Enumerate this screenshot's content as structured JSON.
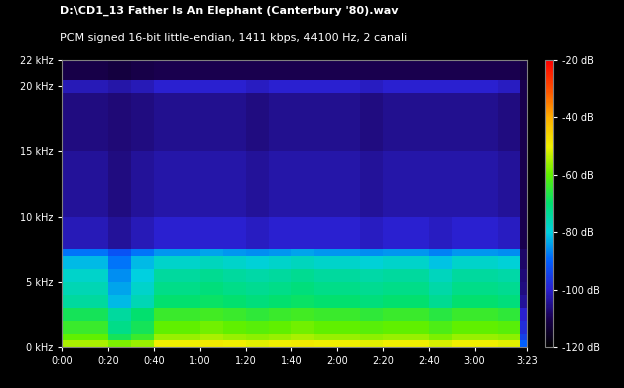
{
  "chart_data": {
    "type": "heatmap",
    "title": "D:\\CD1_13 Father Is An Elephant (Canterbury '80).wav",
    "subtitle": "PCM signed 16-bit little-endian, 1411 kbps, 44100 Hz, 2 canali",
    "x_edges": [
      0,
      10,
      20,
      30,
      40,
      50,
      60,
      70,
      80,
      90,
      100,
      110,
      120,
      130,
      140,
      150,
      160,
      170,
      180,
      190,
      200,
      203
    ],
    "y_edges": [
      0,
      0.5,
      1,
      2,
      3,
      4,
      5,
      6,
      7,
      7.5,
      10,
      15,
      19.5,
      20.5,
      22
    ],
    "cells": [
      [
        -55,
        -55,
        -58,
        -56,
        -50,
        -50,
        -49,
        -50,
        -51,
        -50,
        -49,
        -50,
        -50,
        -51,
        -50,
        -50,
        -52,
        -50,
        -50,
        -51,
        -90
      ],
      [
        -60,
        -60,
        -68,
        -64,
        -56,
        -56,
        -55,
        -56,
        -57,
        -56,
        -55,
        -56,
        -56,
        -57,
        -56,
        -56,
        -58,
        -56,
        -56,
        -57,
        -95
      ],
      [
        -64,
        -64,
        -72,
        -68,
        -60,
        -60,
        -59,
        -60,
        -61,
        -60,
        -59,
        -60,
        -60,
        -61,
        -60,
        -60,
        -62,
        -60,
        -60,
        -61,
        -98
      ],
      [
        -68,
        -68,
        -74,
        -70,
        -64,
        -64,
        -63,
        -64,
        -65,
        -64,
        -63,
        -64,
        -64,
        -65,
        -64,
        -64,
        -66,
        -64,
        -64,
        -65,
        -100
      ],
      [
        -74,
        -74,
        -82,
        -76,
        -70,
        -70,
        -69,
        -70,
        -71,
        -70,
        -69,
        -70,
        -70,
        -71,
        -70,
        -70,
        -73,
        -70,
        -70,
        -71,
        -104
      ],
      [
        -76,
        -76,
        -84,
        -78,
        -72,
        -72,
        -71,
        -72,
        -73,
        -72,
        -71,
        -72,
        -72,
        -73,
        -72,
        -72,
        -75,
        -72,
        -72,
        -73,
        -106
      ],
      [
        -78,
        -78,
        -86,
        -80,
        -74,
        -74,
        -73,
        -74,
        -75,
        -74,
        -73,
        -74,
        -74,
        -75,
        -74,
        -74,
        -77,
        -74,
        -74,
        -75,
        -107
      ],
      [
        -82,
        -82,
        -88,
        -82,
        -78,
        -78,
        -77,
        -78,
        -79,
        -78,
        -77,
        -78,
        -78,
        -79,
        -78,
        -78,
        -81,
        -78,
        -78,
        -79,
        -108
      ],
      [
        -88,
        -88,
        -92,
        -88,
        -85,
        -85,
        -84,
        -85,
        -86,
        -85,
        -84,
        -85,
        -85,
        -86,
        -85,
        -85,
        -87,
        -85,
        -85,
        -86,
        -108
      ],
      [
        -102,
        -102,
        -104,
        -102,
        -100,
        -100,
        -100,
        -100,
        -101,
        -100,
        -100,
        -100,
        -100,
        -101,
        -100,
        -100,
        -101,
        -100,
        -100,
        -101,
        -110
      ],
      [
        -104,
        -104,
        -106,
        -104,
        -103,
        -103,
        -103,
        -103,
        -104,
        -103,
        -103,
        -103,
        -103,
        -104,
        -103,
        -103,
        -103,
        -103,
        -103,
        -104,
        -110
      ],
      [
        -106,
        -106,
        -107,
        -106,
        -105,
        -105,
        -105,
        -105,
        -106,
        -105,
        -105,
        -105,
        -105,
        -106,
        -105,
        -105,
        -105,
        -105,
        -105,
        -106,
        -110
      ],
      [
        -102,
        -102,
        -103,
        -102,
        -100,
        -100,
        -100,
        -100,
        -101,
        -100,
        -100,
        -100,
        -100,
        -101,
        -100,
        -100,
        -100,
        -100,
        -100,
        -101,
        -110
      ],
      [
        -111,
        -111,
        -112,
        -111,
        -110,
        -110,
        -110,
        -110,
        -110,
        -110,
        -110,
        -110,
        -110,
        -110,
        -110,
        -110,
        -110,
        -110,
        -110,
        -110,
        -112
      ]
    ],
    "xlim": [
      0,
      203
    ],
    "xticks": [
      {
        "value": 0,
        "label": "0:00"
      },
      {
        "value": 20,
        "label": "0:20"
      },
      {
        "value": 40,
        "label": "0:40"
      },
      {
        "value": 60,
        "label": "1:00"
      },
      {
        "value": 80,
        "label": "1:20"
      },
      {
        "value": 100,
        "label": "1:40"
      },
      {
        "value": 120,
        "label": "2:00"
      },
      {
        "value": 140,
        "label": "2:20"
      },
      {
        "value": 160,
        "label": "2:40"
      },
      {
        "value": 180,
        "label": "3:00"
      },
      {
        "value": 203,
        "label": "3:23"
      }
    ],
    "ylim": [
      0,
      22
    ],
    "yticks": [
      {
        "value": 0,
        "label": "0 kHz"
      },
      {
        "value": 5,
        "label": "5 kHz"
      },
      {
        "value": 10,
        "label": "10 kHz"
      },
      {
        "value": 15,
        "label": "15 kHz"
      },
      {
        "value": 20,
        "label": "20 kHz"
      },
      {
        "value": 22,
        "label": "22 kHz"
      }
    ],
    "colorbar_lim": [
      -120,
      -20
    ],
    "colorbar_ticks": [
      {
        "value": -20,
        "label": "-20 dB"
      },
      {
        "value": -40,
        "label": "-40 dB"
      },
      {
        "value": -60,
        "label": "-60 dB"
      },
      {
        "value": -80,
        "label": "-80 dB"
      },
      {
        "value": -100,
        "label": "-100 dB"
      },
      {
        "value": -120,
        "label": "-120 dB"
      }
    ]
  }
}
